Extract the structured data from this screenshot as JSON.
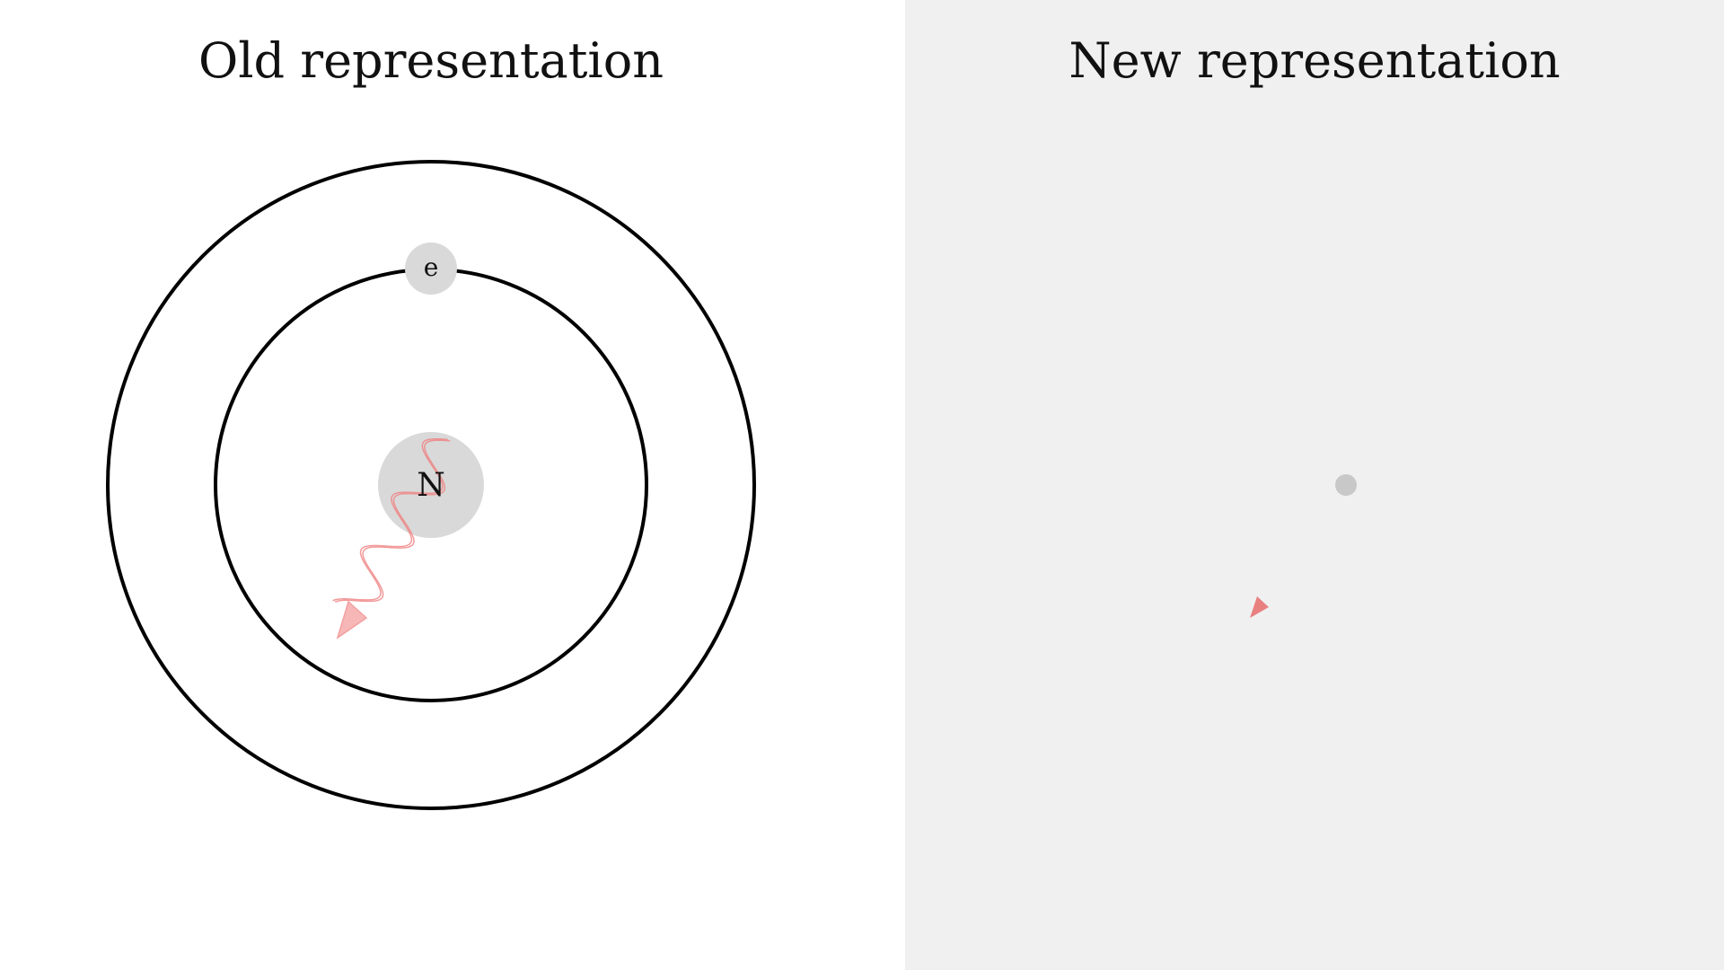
{
  "old_panel": {
    "title": "Old representation",
    "nucleus_label": "N",
    "electron_label": "e"
  },
  "new_panel": {
    "title": "New representation"
  },
  "colors": {
    "left_background": "#ffffff",
    "right_background": "#f0f0f0",
    "orbit_stroke": "#000000",
    "particle_fill": "#d9d9d9",
    "new_particle_fill": "#c8c8c8",
    "photon": "#f08080",
    "new_photon_marker": "#e88080"
  }
}
